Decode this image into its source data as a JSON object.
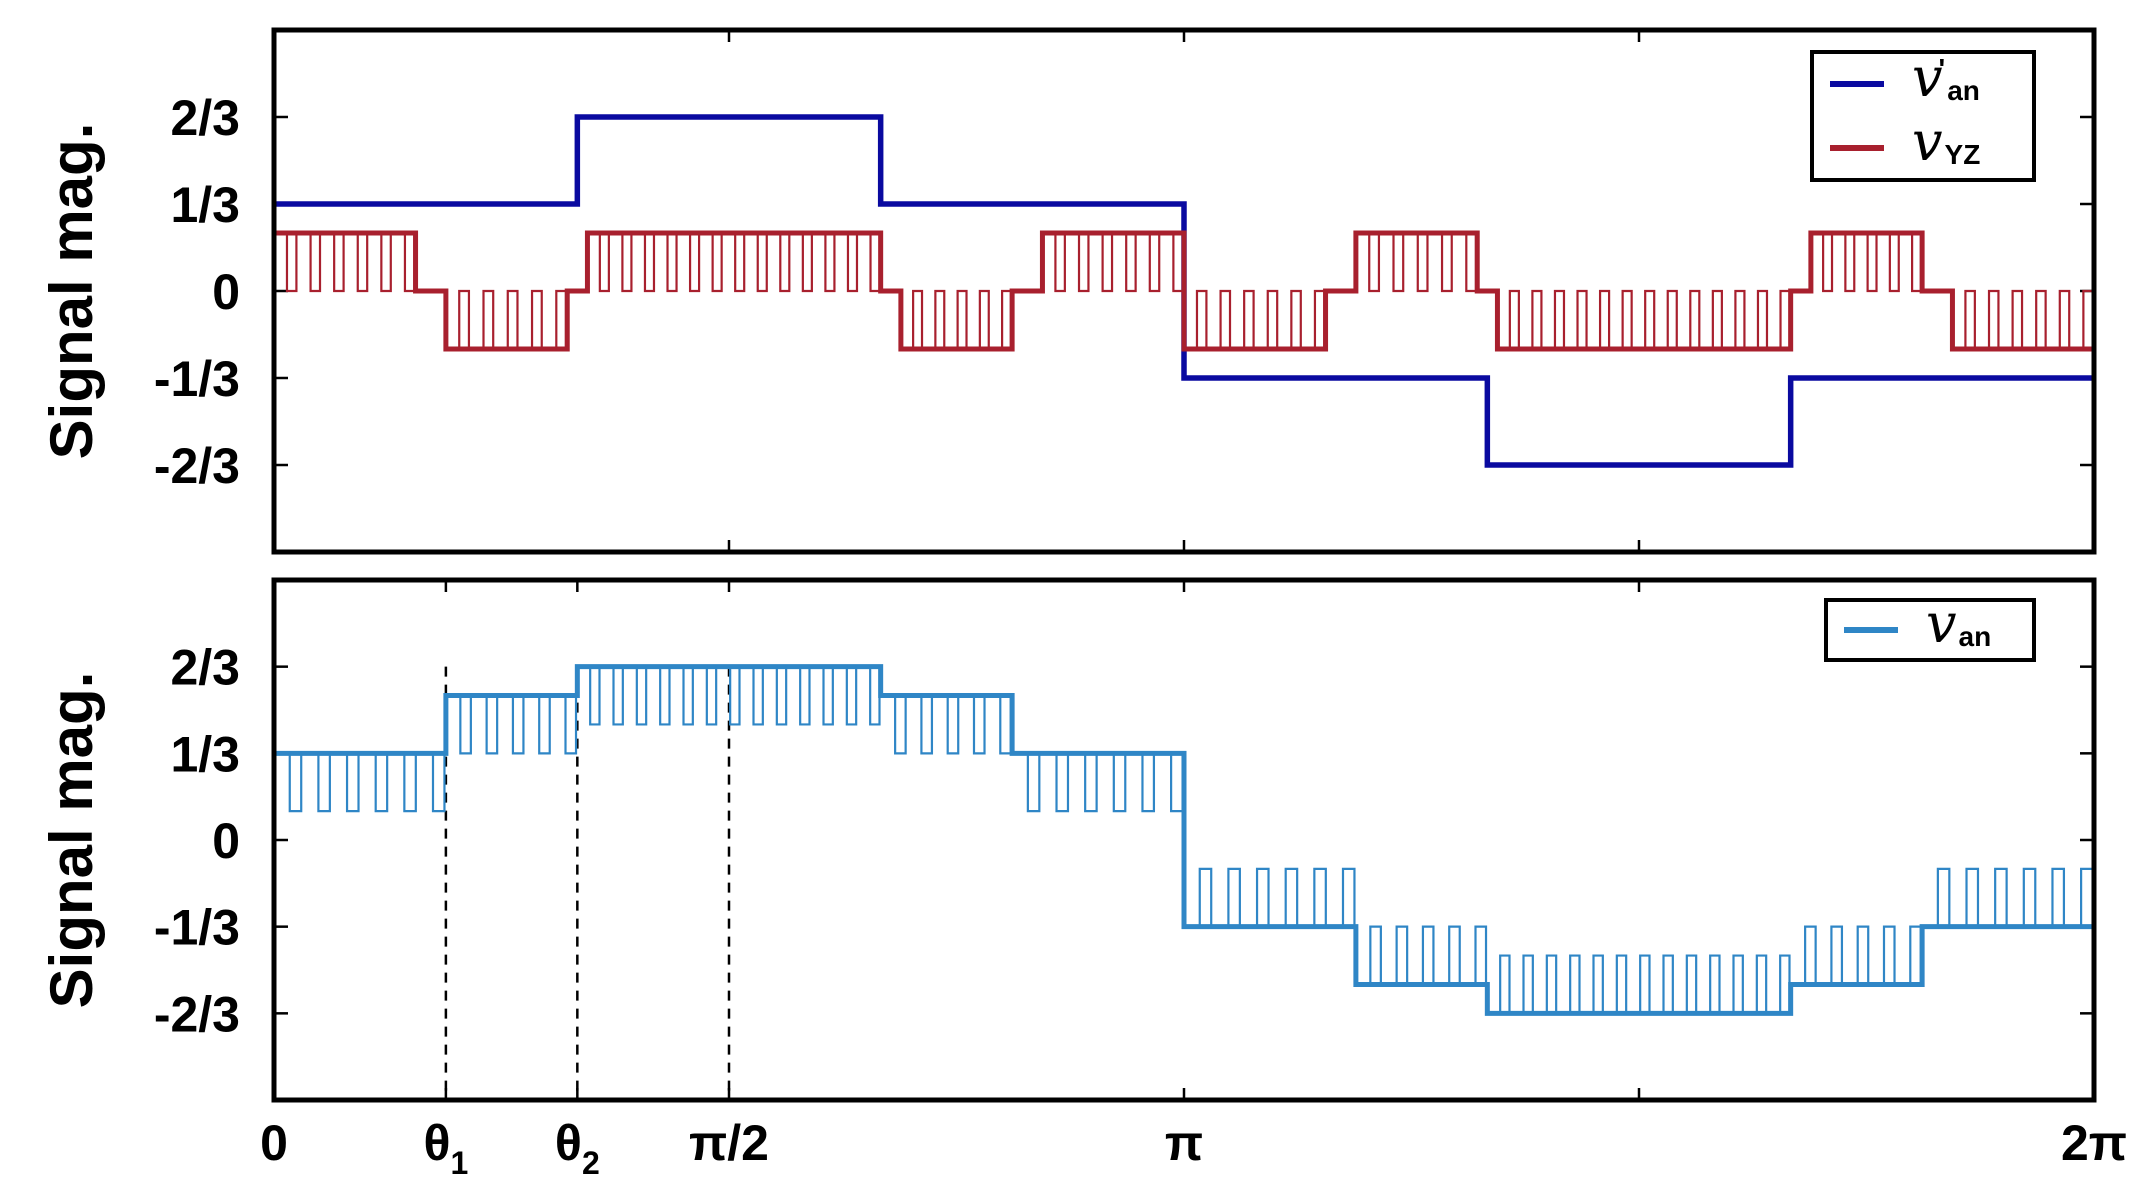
{
  "chart_data": [
    {
      "type": "line",
      "panel": "top",
      "ylabel": "Signal mag.",
      "xlim": [
        0,
        6.2832
      ],
      "ylim": [
        -1,
        1
      ],
      "yticks": [
        {
          "value": 0.6667,
          "label": "2/3"
        },
        {
          "value": 0.3333,
          "label": "1/3"
        },
        {
          "value": 0,
          "label": "0"
        },
        {
          "value": -0.3333,
          "label": "-1/3"
        },
        {
          "value": -0.6667,
          "label": "-2/3"
        }
      ],
      "xtick_positions": [
        0,
        1.5708,
        3.1416,
        4.7124,
        6.2832
      ],
      "legend_position": "top-right",
      "series": [
        {
          "name": "v'an",
          "name_main": "v",
          "name_sup": "'",
          "name_sub": "an",
          "color": "#0a0aa0",
          "kind": "step",
          "segments": [
            {
              "x0": 0,
              "x1": 1.0472,
              "y": 0.3333
            },
            {
              "x0": 1.0472,
              "x1": 2.0944,
              "y": 0.6667
            },
            {
              "x0": 2.0944,
              "x1": 3.1416,
              "y": 0.3333
            },
            {
              "x0": 3.1416,
              "x1": 4.1888,
              "y": -0.3333
            },
            {
              "x0": 4.1888,
              "x1": 5.236,
              "y": -0.6667
            },
            {
              "x0": 5.236,
              "x1": 6.2832,
              "y": -0.3333
            }
          ]
        },
        {
          "name": "vYZ",
          "name_main": "v",
          "name_sub": "YZ",
          "color": "#a8202e",
          "kind": "pwm",
          "segments": [
            {
              "x0": 0,
              "x1": 0.4887,
              "level": 0.2222,
              "base": 0,
              "pulses": 6
            },
            {
              "x0": 0.4887,
              "x1": 0.5934,
              "level": 0,
              "base": 0,
              "pulses": 0
            },
            {
              "x0": 0.5934,
              "x1": 1.0123,
              "level": -0.2222,
              "base": 0,
              "pulses": 5
            },
            {
              "x0": 1.0123,
              "x1": 1.0821,
              "level": 0,
              "base": 0,
              "pulses": 0
            },
            {
              "x0": 1.0821,
              "x1": 2.0944,
              "level": 0.2222,
              "base": 0,
              "pulses": 13
            },
            {
              "x0": 2.0944,
              "x1": 2.1642,
              "level": 0,
              "base": 0,
              "pulses": 0
            },
            {
              "x0": 2.1642,
              "x1": 2.5482,
              "level": -0.2222,
              "base": 0,
              "pulses": 5
            },
            {
              "x0": 2.5482,
              "x1": 2.6529,
              "level": 0,
              "base": 0,
              "pulses": 0
            },
            {
              "x0": 2.6529,
              "x1": 3.1416,
              "level": 0.2222,
              "base": 0,
              "pulses": 6
            },
            {
              "x0": 3.1416,
              "x1": 3.6303,
              "level": -0.2222,
              "base": 0,
              "pulses": 6
            },
            {
              "x0": 3.6303,
              "x1": 3.735,
              "level": 0,
              "base": 0,
              "pulses": 0
            },
            {
              "x0": 3.735,
              "x1": 4.1539,
              "level": 0.2222,
              "base": 0,
              "pulses": 5
            },
            {
              "x0": 4.1539,
              "x1": 4.2237,
              "level": 0,
              "base": 0,
              "pulses": 0
            },
            {
              "x0": 4.2237,
              "x1": 5.236,
              "level": -0.2222,
              "base": 0,
              "pulses": 13
            },
            {
              "x0": 5.236,
              "x1": 5.3058,
              "level": 0,
              "base": 0,
              "pulses": 0
            },
            {
              "x0": 5.3058,
              "x1": 5.6898,
              "level": 0.2222,
              "base": 0,
              "pulses": 5
            },
            {
              "x0": 5.6898,
              "x1": 5.7945,
              "level": 0,
              "base": 0,
              "pulses": 0
            },
            {
              "x0": 5.7945,
              "x1": 6.2832,
              "level": -0.2222,
              "base": 0,
              "pulses": 6
            }
          ]
        }
      ]
    },
    {
      "type": "line",
      "panel": "bottom",
      "ylabel": "Signal mag.",
      "xlim": [
        0,
        6.2832
      ],
      "ylim": [
        -1,
        1
      ],
      "yticks": [
        {
          "value": 0.6667,
          "label": "2/3"
        },
        {
          "value": 0.3333,
          "label": "1/3"
        },
        {
          "value": 0,
          "label": "0"
        },
        {
          "value": -0.3333,
          "label": "-1/3"
        },
        {
          "value": -0.6667,
          "label": "-2/3"
        }
      ],
      "xticks": [
        {
          "value": 0,
          "label": "0"
        },
        {
          "value": 0.5934,
          "label": "θ",
          "sub": "1"
        },
        {
          "value": 1.0472,
          "label": "θ",
          "sub": "2"
        },
        {
          "value": 1.5708,
          "label": "π/2"
        },
        {
          "value": 3.1416,
          "label": "π"
        },
        {
          "value": 4.7124,
          "label": ""
        },
        {
          "value": 6.2832,
          "label": "2π"
        }
      ],
      "dashed_lines_x": [
        0.5934,
        1.0472,
        1.5708
      ],
      "legend_position": "top-right",
      "series": [
        {
          "name": "van",
          "name_main": "v",
          "name_sub": "an",
          "color": "#2f86c6",
          "kind": "pwm",
          "segments": [
            {
              "x0": 0,
              "x1": 0.5934,
              "level": 0.3333,
              "base": 0.1111,
              "pulses": 6
            },
            {
              "x0": 0.5934,
              "x1": 1.0472,
              "level": 0.5556,
              "base": 0.3333,
              "pulses": 5
            },
            {
              "x0": 1.0472,
              "x1": 2.0944,
              "level": 0.6667,
              "base": 0.4444,
              "pulses": 13
            },
            {
              "x0": 2.0944,
              "x1": 2.5482,
              "level": 0.5556,
              "base": 0.3333,
              "pulses": 5
            },
            {
              "x0": 2.5482,
              "x1": 3.1416,
              "level": 0.3333,
              "base": 0.1111,
              "pulses": 6
            },
            {
              "x0": 3.1416,
              "x1": 3.735,
              "level": -0.3333,
              "base": -0.1111,
              "pulses": 6
            },
            {
              "x0": 3.735,
              "x1": 4.1888,
              "level": -0.5556,
              "base": -0.3333,
              "pulses": 5
            },
            {
              "x0": 4.1888,
              "x1": 5.236,
              "level": -0.6667,
              "base": -0.4444,
              "pulses": 13
            },
            {
              "x0": 5.236,
              "x1": 5.6898,
              "level": -0.5556,
              "base": -0.3333,
              "pulses": 5
            },
            {
              "x0": 5.6898,
              "x1": 6.2832,
              "level": -0.3333,
              "base": -0.1111,
              "pulses": 6
            }
          ]
        }
      ]
    }
  ]
}
